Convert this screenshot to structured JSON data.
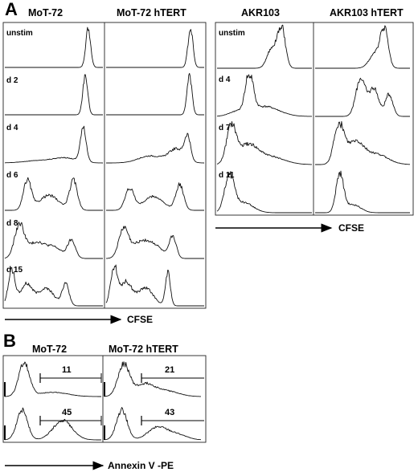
{
  "chart_data": [
    {
      "type": "histogram-grid",
      "panel": "A",
      "columns": [
        "MoT-72",
        "MoT-72 hTERT"
      ],
      "rows": [
        "unstim",
        "d 2",
        "d 4",
        "d 6",
        "d 8",
        "d 15"
      ],
      "xlabel": "CFSE",
      "series": [
        {
          "peaks": [
            [
              0.85,
              1.0,
              0.025
            ]
          ]
        },
        {
          "peaks": [
            [
              0.86,
              1.0,
              0.025
            ]
          ]
        },
        {
          "peaks": [
            [
              0.82,
              1.0,
              0.025
            ]
          ]
        },
        {
          "peaks": [
            [
              0.85,
              1.0,
              0.025
            ]
          ]
        },
        {
          "peaks": [
            [
              0.8,
              0.85,
              0.03
            ],
            [
              0.62,
              0.12,
              0.12
            ],
            [
              0.35,
              0.06,
              0.15
            ]
          ]
        },
        {
          "peaks": [
            [
              0.83,
              0.6,
              0.03
            ],
            [
              0.72,
              0.35,
              0.08
            ],
            [
              0.45,
              0.18,
              0.12
            ]
          ]
        },
        {
          "peaks": [
            [
              0.23,
              0.75,
              0.04
            ],
            [
              0.7,
              0.75,
              0.04
            ],
            [
              0.45,
              0.38,
              0.1
            ]
          ]
        },
        {
          "peaks": [
            [
              0.24,
              0.55,
              0.045
            ],
            [
              0.75,
              0.65,
              0.04
            ],
            [
              0.48,
              0.35,
              0.1
            ]
          ]
        },
        {
          "peaks": [
            [
              0.15,
              0.85,
              0.05
            ],
            [
              0.32,
              0.4,
              0.08
            ],
            [
              0.68,
              0.45,
              0.04
            ],
            [
              0.5,
              0.28,
              0.08
            ]
          ]
        },
        {
          "peaks": [
            [
              0.18,
              0.75,
              0.05
            ],
            [
              0.35,
              0.4,
              0.08
            ],
            [
              0.68,
              0.55,
              0.035
            ],
            [
              0.5,
              0.3,
              0.08
            ]
          ]
        },
        {
          "peaks": [
            [
              0.07,
              0.9,
              0.035
            ],
            [
              0.22,
              0.55,
              0.06
            ],
            [
              0.42,
              0.45,
              0.08
            ],
            [
              0.62,
              0.55,
              0.035
            ]
          ]
        },
        {
          "peaks": [
            [
              0.08,
              0.95,
              0.035
            ],
            [
              0.2,
              0.6,
              0.06
            ],
            [
              0.4,
              0.45,
              0.08
            ],
            [
              0.63,
              0.85,
              0.025
            ]
          ]
        }
      ]
    },
    {
      "type": "histogram-grid",
      "panel": "A",
      "columns": [
        "AKR103",
        "AKR103 hTERT"
      ],
      "rows": [
        "unstim",
        "d 4",
        "d 7",
        "d 11"
      ],
      "xlabel": "CFSE",
      "series": [
        {
          "peaks": [
            [
              0.68,
              1.0,
              0.04
            ],
            [
              0.58,
              0.5,
              0.05
            ]
          ]
        },
        {
          "peaks": [
            [
              0.73,
              1.0,
              0.04
            ],
            [
              0.63,
              0.35,
              0.06
            ]
          ]
        },
        {
          "peaks": [
            [
              0.34,
              1.0,
              0.04
            ],
            [
              0.5,
              0.25,
              0.15
            ],
            [
              0.2,
              0.1,
              0.08
            ]
          ]
        },
        {
          "peaks": [
            [
              0.48,
              0.95,
              0.05
            ],
            [
              0.62,
              0.7,
              0.05
            ],
            [
              0.78,
              0.55,
              0.04
            ]
          ]
        },
        {
          "peaks": [
            [
              0.15,
              0.9,
              0.05
            ],
            [
              0.32,
              0.45,
              0.1
            ],
            [
              0.55,
              0.2,
              0.15
            ]
          ]
        },
        {
          "peaks": [
            [
              0.25,
              1.0,
              0.05
            ],
            [
              0.42,
              0.55,
              0.09
            ],
            [
              0.65,
              0.25,
              0.12
            ]
          ]
        },
        {
          "peaks": [
            [
              0.13,
              0.9,
              0.05
            ],
            [
              0.28,
              0.25,
              0.1
            ]
          ]
        },
        {
          "peaks": [
            [
              0.26,
              0.95,
              0.04
            ],
            [
              0.4,
              0.2,
              0.08
            ]
          ]
        }
      ]
    },
    {
      "type": "histogram-grid",
      "panel": "B",
      "columns": [
        "MoT-72",
        "MoT-72 hTERT"
      ],
      "rows": [
        "",
        ""
      ],
      "xlabel": "Annexin V -PE",
      "gates": [
        "11",
        "21",
        "45",
        "43"
      ],
      "series": [
        {
          "peaks": [
            [
              0.2,
              0.95,
              0.055
            ],
            [
              0.5,
              0.12,
              0.15
            ]
          ]
        },
        {
          "peaks": [
            [
              0.2,
              0.9,
              0.06
            ],
            [
              0.42,
              0.35,
              0.1
            ],
            [
              0.65,
              0.15,
              0.12
            ]
          ]
        },
        {
          "peaks": [
            [
              0.18,
              0.85,
              0.055
            ],
            [
              0.6,
              0.55,
              0.1
            ]
          ]
        },
        {
          "peaks": [
            [
              0.18,
              0.85,
              0.055
            ],
            [
              0.55,
              0.35,
              0.1
            ],
            [
              0.75,
              0.15,
              0.1
            ]
          ]
        }
      ]
    }
  ]
}
